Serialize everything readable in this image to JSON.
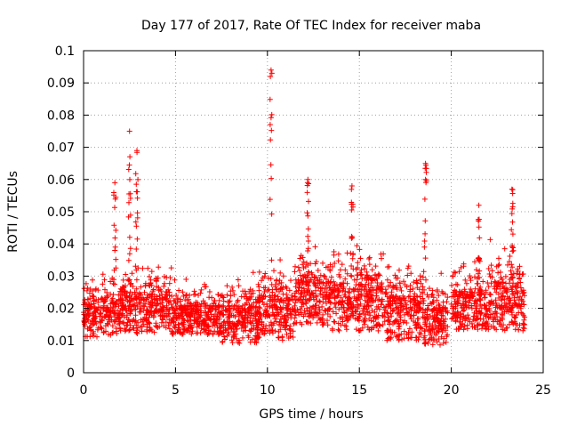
{
  "chart_data": {
    "type": "scatter",
    "title": "Day 177 of 2017, Rate Of TEC Index for receiver maba",
    "xlabel": "GPS time / hours",
    "ylabel": "ROTI / TECUs",
    "xlim": [
      0,
      25
    ],
    "ylim": [
      0,
      0.1
    ],
    "xticks": [
      0,
      5,
      10,
      15,
      20,
      25
    ],
    "yticks": [
      0,
      0.01,
      0.02,
      0.03,
      0.04,
      0.05,
      0.06,
      0.07,
      0.08,
      0.09,
      0.1
    ],
    "xtick_labels": [
      "0",
      "5",
      "10",
      "15",
      "20",
      "25"
    ],
    "ytick_labels": [
      "0",
      "0.01",
      "0.02",
      "0.03",
      "0.04",
      "0.05",
      "0.06",
      "0.07",
      "0.08",
      "0.09",
      "0.1"
    ],
    "grid": true,
    "marker": "+",
    "series": [
      {
        "name": "ROTI",
        "color": "#ff0000",
        "description": "dense cloud of points between 0 and 24 h, mostly 0.01-0.03 TECU/min",
        "peaks": [
          {
            "x": 1.7,
            "y": 0.059
          },
          {
            "x": 2.5,
            "y": 0.075
          },
          {
            "x": 2.9,
            "y": 0.069
          },
          {
            "x": 10.2,
            "y": 0.094
          },
          {
            "x": 12.2,
            "y": 0.06
          },
          {
            "x": 14.6,
            "y": 0.058
          },
          {
            "x": 18.6,
            "y": 0.065
          },
          {
            "x": 21.5,
            "y": 0.052
          },
          {
            "x": 23.3,
            "y": 0.057
          }
        ],
        "activity_bands": [
          {
            "x0": 0.0,
            "x1": 2.0,
            "low": 0.009,
            "high": 0.03
          },
          {
            "x0": 2.0,
            "x1": 4.8,
            "low": 0.01,
            "high": 0.035
          },
          {
            "x0": 4.8,
            "x1": 7.5,
            "low": 0.01,
            "high": 0.028
          },
          {
            "x0": 7.5,
            "x1": 9.5,
            "low": 0.007,
            "high": 0.03
          },
          {
            "x0": 9.5,
            "x1": 11.5,
            "low": 0.008,
            "high": 0.035
          },
          {
            "x0": 11.5,
            "x1": 13.5,
            "low": 0.012,
            "high": 0.04
          },
          {
            "x0": 13.5,
            "x1": 16.5,
            "low": 0.01,
            "high": 0.04
          },
          {
            "x0": 16.5,
            "x1": 18.5,
            "low": 0.007,
            "high": 0.035
          },
          {
            "x0": 18.5,
            "x1": 19.8,
            "low": 0.006,
            "high": 0.03
          },
          {
            "x0": 20.0,
            "x1": 22.0,
            "low": 0.011,
            "high": 0.035
          },
          {
            "x0": 22.0,
            "x1": 24.0,
            "low": 0.01,
            "high": 0.04
          }
        ]
      }
    ]
  }
}
